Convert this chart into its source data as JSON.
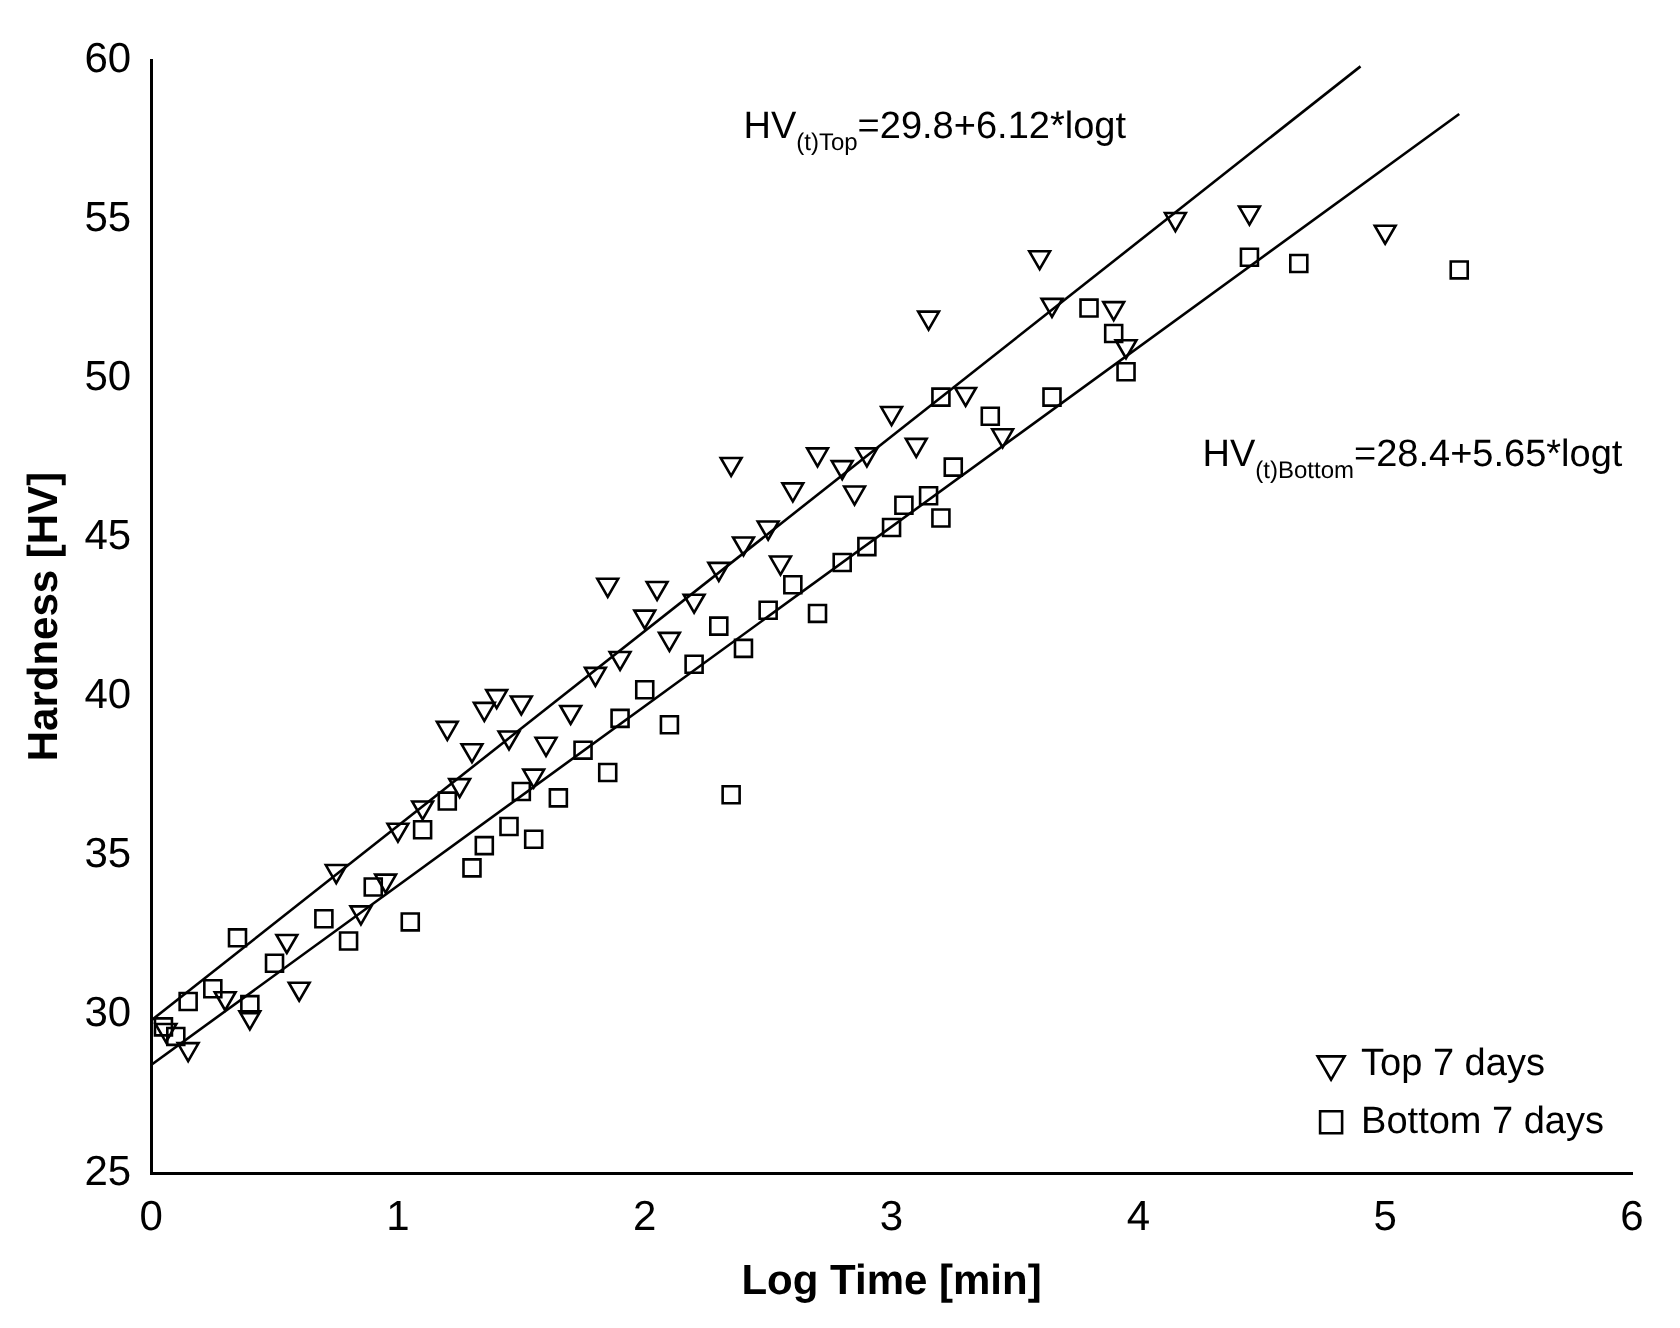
{
  "chart_data": {
    "type": "scatter",
    "xlabel": "Log Time [min]",
    "ylabel": "Hardness [HV]",
    "xlim": [
      0,
      6
    ],
    "xticks": [
      0,
      1,
      2,
      3,
      4,
      5,
      6
    ],
    "ylim": [
      25,
      60
    ],
    "yticks": [
      25,
      30,
      35,
      40,
      45,
      50,
      55,
      60
    ],
    "grid": false,
    "legend": "bottom right",
    "annotations": [
      "HV$_{(t)Top}$=29.8+6.12*logt",
      "HV$_{(t)Bottom}$=28.4+5.65*logt"
    ],
    "series": [
      {
        "name": "Top 7 days",
        "marker": "triangle",
        "color": "#000000",
        "x": [
          0.06,
          0.15,
          0.3,
          0.4,
          0.6,
          0.55,
          0.75,
          0.85,
          0.95,
          1.0,
          1.1,
          1.2,
          1.25,
          1.3,
          1.35,
          1.4,
          1.45,
          1.5,
          1.55,
          1.6,
          1.7,
          1.8,
          1.85,
          1.9,
          2.0,
          2.05,
          2.1,
          2.2,
          2.3,
          2.35,
          2.4,
          2.5,
          2.55,
          2.6,
          2.7,
          2.8,
          2.85,
          2.9,
          3.0,
          3.1,
          3.15,
          3.3,
          3.45,
          3.6,
          3.65,
          3.9,
          3.95,
          4.15,
          4.45,
          5.0
        ],
        "values": [
          29.5,
          28.9,
          30.5,
          29.9,
          30.8,
          32.3,
          34.5,
          33.2,
          34.2,
          35.8,
          36.5,
          39.0,
          37.2,
          38.3,
          39.6,
          40.0,
          38.7,
          39.8,
          37.5,
          38.5,
          39.5,
          40.7,
          43.5,
          41.2,
          42.5,
          43.4,
          41.8,
          43.0,
          44.0,
          47.3,
          44.8,
          45.3,
          44.2,
          46.5,
          47.6,
          47.2,
          46.4,
          47.6,
          48.9,
          47.9,
          51.9,
          49.5,
          48.2,
          53.8,
          52.3,
          52.2,
          51.0,
          55.0,
          55.2,
          54.6
        ]
      },
      {
        "name": "Bottom 7 days",
        "marker": "square",
        "color": "#000000",
        "x": [
          0.05,
          0.1,
          0.15,
          0.25,
          0.35,
          0.4,
          0.5,
          0.7,
          0.8,
          0.9,
          1.05,
          1.1,
          1.2,
          1.3,
          1.35,
          1.45,
          1.5,
          1.55,
          1.65,
          1.75,
          1.85,
          1.9,
          2.0,
          2.1,
          2.2,
          2.3,
          2.35,
          2.4,
          2.5,
          2.6,
          2.7,
          2.8,
          2.9,
          3.0,
          3.05,
          3.15,
          3.2,
          3.25,
          3.2,
          3.4,
          3.65,
          3.8,
          3.9,
          3.95,
          4.45,
          4.65,
          5.3
        ],
        "values": [
          29.6,
          29.3,
          30.4,
          30.8,
          32.4,
          30.3,
          31.6,
          33.0,
          32.3,
          34.0,
          32.9,
          35.8,
          36.7,
          34.6,
          35.3,
          35.9,
          37.0,
          35.5,
          36.8,
          38.3,
          37.6,
          39.3,
          40.2,
          39.1,
          41.0,
          42.2,
          36.9,
          41.5,
          42.7,
          43.5,
          42.6,
          44.2,
          44.7,
          45.3,
          46.0,
          46.3,
          45.6,
          47.2,
          49.4,
          48.8,
          49.4,
          52.2,
          51.4,
          50.2,
          53.8,
          53.6,
          53.4
        ]
      },
      {
        "type": "line",
        "color": "#000000",
        "x": [
          0,
          4.9
        ],
        "values": [
          29.8,
          59.8
        ]
      },
      {
        "type": "line",
        "color": "#000000",
        "x": [
          0,
          5.3
        ],
        "values": [
          28.4,
          58.3
        ]
      }
    ]
  }
}
